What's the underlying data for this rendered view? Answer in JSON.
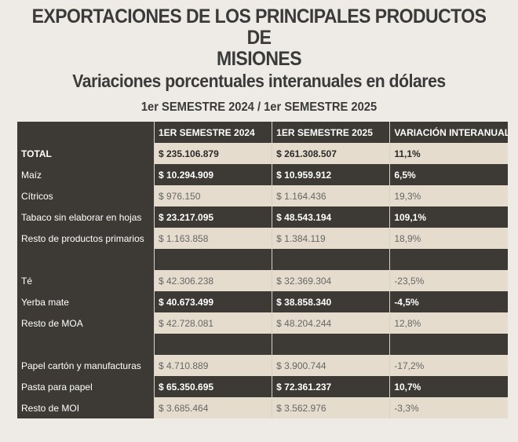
{
  "title": {
    "line1": "EXPORTACIONES DE LOS PRINCIPALES PRODUCTOS DE",
    "line2": "MISIONES",
    "subtitle": "Variaciones porcentuales interanuales en dólares",
    "period": "1er SEMESTRE 2024 / 1er SEMESTRE 2025"
  },
  "colors": {
    "dark": "#3d3a36",
    "light": "#e5dccd",
    "background": "#eeebe6"
  },
  "table": {
    "headers": [
      "",
      "1ER SEMESTRE 2024",
      "1ER SEMESTRE 2025",
      "VARIACIÓN INTERANUAL"
    ],
    "rows": [
      {
        "style": "light bold",
        "cells": [
          "TOTAL",
          "$ 235.106.879",
          "$ 261.308.507",
          "11,1%"
        ]
      },
      {
        "style": "dark",
        "cells": [
          "Maíz",
          "$ 10.294.909",
          "$ 10.959.912",
          "6,5%"
        ]
      },
      {
        "style": "light",
        "cells": [
          "Cítricos",
          "$ 976.150",
          "$ 1.164.436",
          "19,3%"
        ]
      },
      {
        "style": "dark",
        "cells": [
          "Tabaco sin elaborar en hojas",
          "$ 23.217.095",
          "$ 48.543.194",
          "109,1%"
        ]
      },
      {
        "style": "light",
        "cells": [
          "Resto de productos primarios",
          "$ 1.163.858",
          "$ 1.384.119",
          "18,9%"
        ]
      },
      {
        "style": "blank",
        "cells": [
          "",
          "",
          "",
          ""
        ]
      },
      {
        "style": "light",
        "cells": [
          "Té",
          "$ 42.306.238",
          "$ 32.369.304",
          "-23,5%"
        ]
      },
      {
        "style": "dark",
        "cells": [
          "Yerba mate",
          "$ 40.673.499",
          "$ 38.858.340",
          "-4,5%"
        ]
      },
      {
        "style": "light",
        "cells": [
          "Resto de MOA",
          "$ 42.728.081",
          "$ 48.204.244",
          "12,8%"
        ]
      },
      {
        "style": "blank",
        "cells": [
          "",
          "",
          "",
          ""
        ]
      },
      {
        "style": "light",
        "cells": [
          "Papel cartón y manufacturas",
          "$ 4.710.889",
          "$ 3.900.744",
          "-17,2%"
        ]
      },
      {
        "style": "dark",
        "cells": [
          "Pasta para papel",
          "$ 65.350.695",
          "$ 72.361.237",
          "10,7%"
        ]
      },
      {
        "style": "light",
        "cells": [
          "Resto de MOI",
          "$ 3.685.464",
          "$ 3.562.976",
          "-3,3%"
        ]
      }
    ]
  }
}
